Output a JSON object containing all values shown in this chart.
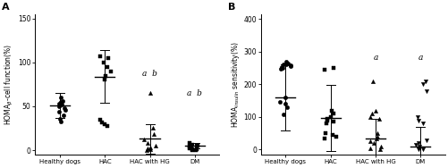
{
  "panel_A": {
    "title": "A",
    "ylim": [
      -5,
      155
    ],
    "yticks": [
      0,
      50,
      100,
      150
    ],
    "categories": [
      "Healthy dogs",
      "HAC",
      "HAC with HG",
      "DM"
    ],
    "scatter_data": [
      [
        60,
        56,
        55,
        54,
        53,
        52,
        50,
        48,
        46,
        44,
        40,
        36,
        33
      ],
      [
        107,
        105,
        100,
        95,
        90,
        85,
        80,
        35,
        32,
        30,
        28
      ],
      [
        65,
        25,
        18,
        12,
        8,
        5,
        3,
        2,
        1,
        0
      ],
      [
        8,
        6,
        5,
        4,
        3,
        2,
        1,
        1,
        0,
        0
      ]
    ],
    "means": [
      51,
      84,
      13,
      5
    ],
    "errors": [
      14,
      30,
      17,
      3
    ],
    "markers": [
      "o",
      "s",
      "^",
      "s"
    ],
    "sig_labels": [
      null,
      null,
      "a  b",
      "a  b"
    ],
    "sig_y": [
      null,
      null,
      82,
      60
    ],
    "sig_x_offset": [
      null,
      null,
      0,
      0
    ]
  },
  "panel_B": {
    "title": "B",
    "ylim": [
      -15,
      415
    ],
    "yticks": [
      0,
      100,
      200,
      300,
      400
    ],
    "categories": [
      "Healthy dogs",
      "HAC",
      "HAC with HG",
      "DM"
    ],
    "scatter_data": [
      [
        270,
        265,
        262,
        260,
        258,
        255,
        253,
        250,
        248,
        160,
        145,
        140,
        130,
        108
      ],
      [
        250,
        245,
        120,
        110,
        100,
        95,
        90,
        85,
        80,
        50,
        45,
        40,
        35
      ],
      [
        210,
        120,
        110,
        100,
        95,
        50,
        40,
        35,
        25,
        20,
        10,
        5,
        2
      ],
      [
        210,
        200,
        180,
        100,
        90,
        80,
        30,
        20,
        15,
        10,
        5,
        2,
        1
      ]
    ],
    "means": [
      160,
      97,
      35,
      10
    ],
    "errors": [
      100,
      100,
      60,
      60
    ],
    "markers": [
      "o",
      "s",
      "^",
      "v"
    ],
    "sig_labels": [
      null,
      null,
      "a",
      "a"
    ],
    "sig_y": [
      null,
      null,
      270,
      270
    ],
    "sig_x_offset": [
      null,
      null,
      0,
      0
    ]
  },
  "marker_size": 10,
  "line_color": "black",
  "dot_color": "black",
  "background": "#ffffff",
  "font_size_ylabel": 5.5,
  "font_size_tick": 5.5,
  "font_size_title": 8,
  "font_size_sig": 6.5,
  "font_size_xticklabel": 5.0
}
